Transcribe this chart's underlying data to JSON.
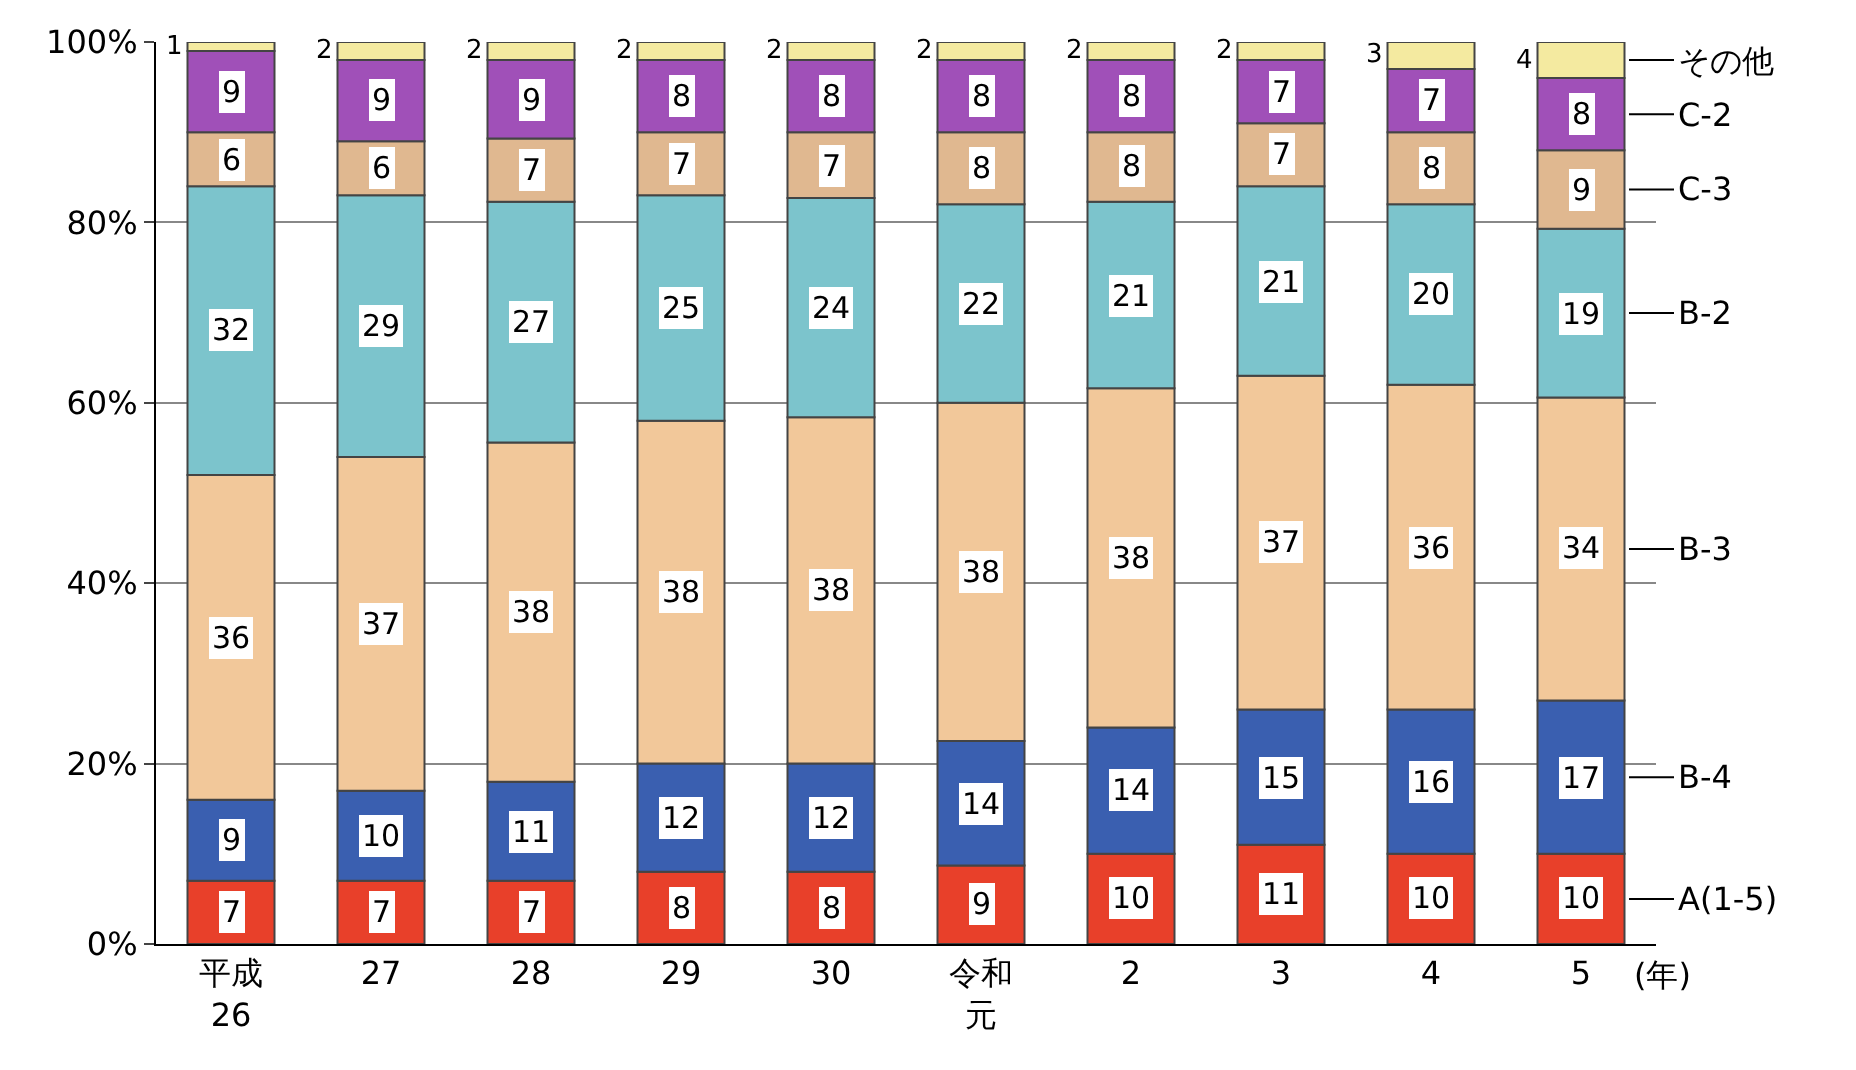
{
  "chart_data": {
    "type": "bar",
    "stacked": true,
    "categories": [
      "平成26",
      "27",
      "28",
      "29",
      "30",
      "令和元",
      "2",
      "3",
      "4",
      "5"
    ],
    "xlabel": "(年)",
    "ylim": [
      0,
      100
    ],
    "yticks": [
      {
        "value": 0,
        "label": "0%"
      },
      {
        "value": 20,
        "label": "20%"
      },
      {
        "value": 40,
        "label": "40%"
      },
      {
        "value": 60,
        "label": "60%"
      },
      {
        "value": 80,
        "label": "80%"
      },
      {
        "value": 100,
        "label": "100%"
      }
    ],
    "grid": "y",
    "legend": false,
    "series": [
      {
        "name": "A(1-5)",
        "color": "#e8402a",
        "values": [
          7,
          7,
          7,
          8,
          8,
          8.7,
          10,
          11,
          10,
          10
        ],
        "value_labels": [
          "7",
          "7",
          "7",
          "8",
          "8",
          "9",
          "10",
          "11",
          "10",
          "10"
        ]
      },
      {
        "name": "B-4",
        "color": "#3a5fb0",
        "values": [
          9,
          10,
          11,
          12,
          12,
          13.8,
          14,
          15,
          16,
          17
        ],
        "value_labels": [
          "9",
          "10",
          "11",
          "12",
          "12",
          "14",
          "14",
          "15",
          "16",
          "17"
        ]
      },
      {
        "name": "B-3",
        "color": "#f2c89a",
        "values": [
          36,
          37,
          37.6,
          38,
          38.4,
          37.5,
          37.6,
          37,
          36,
          33.6
        ],
        "value_labels": [
          "36",
          "37",
          "38",
          "38",
          "38",
          "38",
          "38",
          "37",
          "36",
          "34"
        ]
      },
      {
        "name": "B-2",
        "color": "#7cc4cc",
        "values": [
          32,
          29,
          26.7,
          25,
          24.3,
          22,
          20.7,
          21,
          20,
          18.7
        ],
        "value_labels": [
          "32",
          "29",
          "27",
          "25",
          "24",
          "22",
          "21",
          "21",
          "20",
          "19"
        ]
      },
      {
        "name": "C-3",
        "color": "#e0b890",
        "values": [
          6,
          6,
          7,
          7,
          7.3,
          8,
          7.7,
          7,
          8,
          8.7
        ],
        "value_labels": [
          "6",
          "6",
          "7",
          "7",
          "7",
          "8",
          "8",
          "7",
          "8",
          "9"
        ]
      },
      {
        "name": "C-2",
        "color": "#a050b8",
        "values": [
          9,
          9,
          8.7,
          8,
          8,
          8,
          8,
          7,
          7,
          8
        ],
        "value_labels": [
          "9",
          "9",
          "9",
          "8",
          "8",
          "8",
          "8",
          "7",
          "7",
          "8"
        ]
      },
      {
        "name": "その他",
        "color": "#f4eaa0",
        "values": [
          1,
          2,
          2,
          2,
          2,
          2,
          2,
          2,
          3,
          4
        ],
        "value_labels": [
          "1",
          "2",
          "2",
          "2",
          "2",
          "2",
          "2",
          "2",
          "3",
          "4"
        ]
      }
    ]
  }
}
